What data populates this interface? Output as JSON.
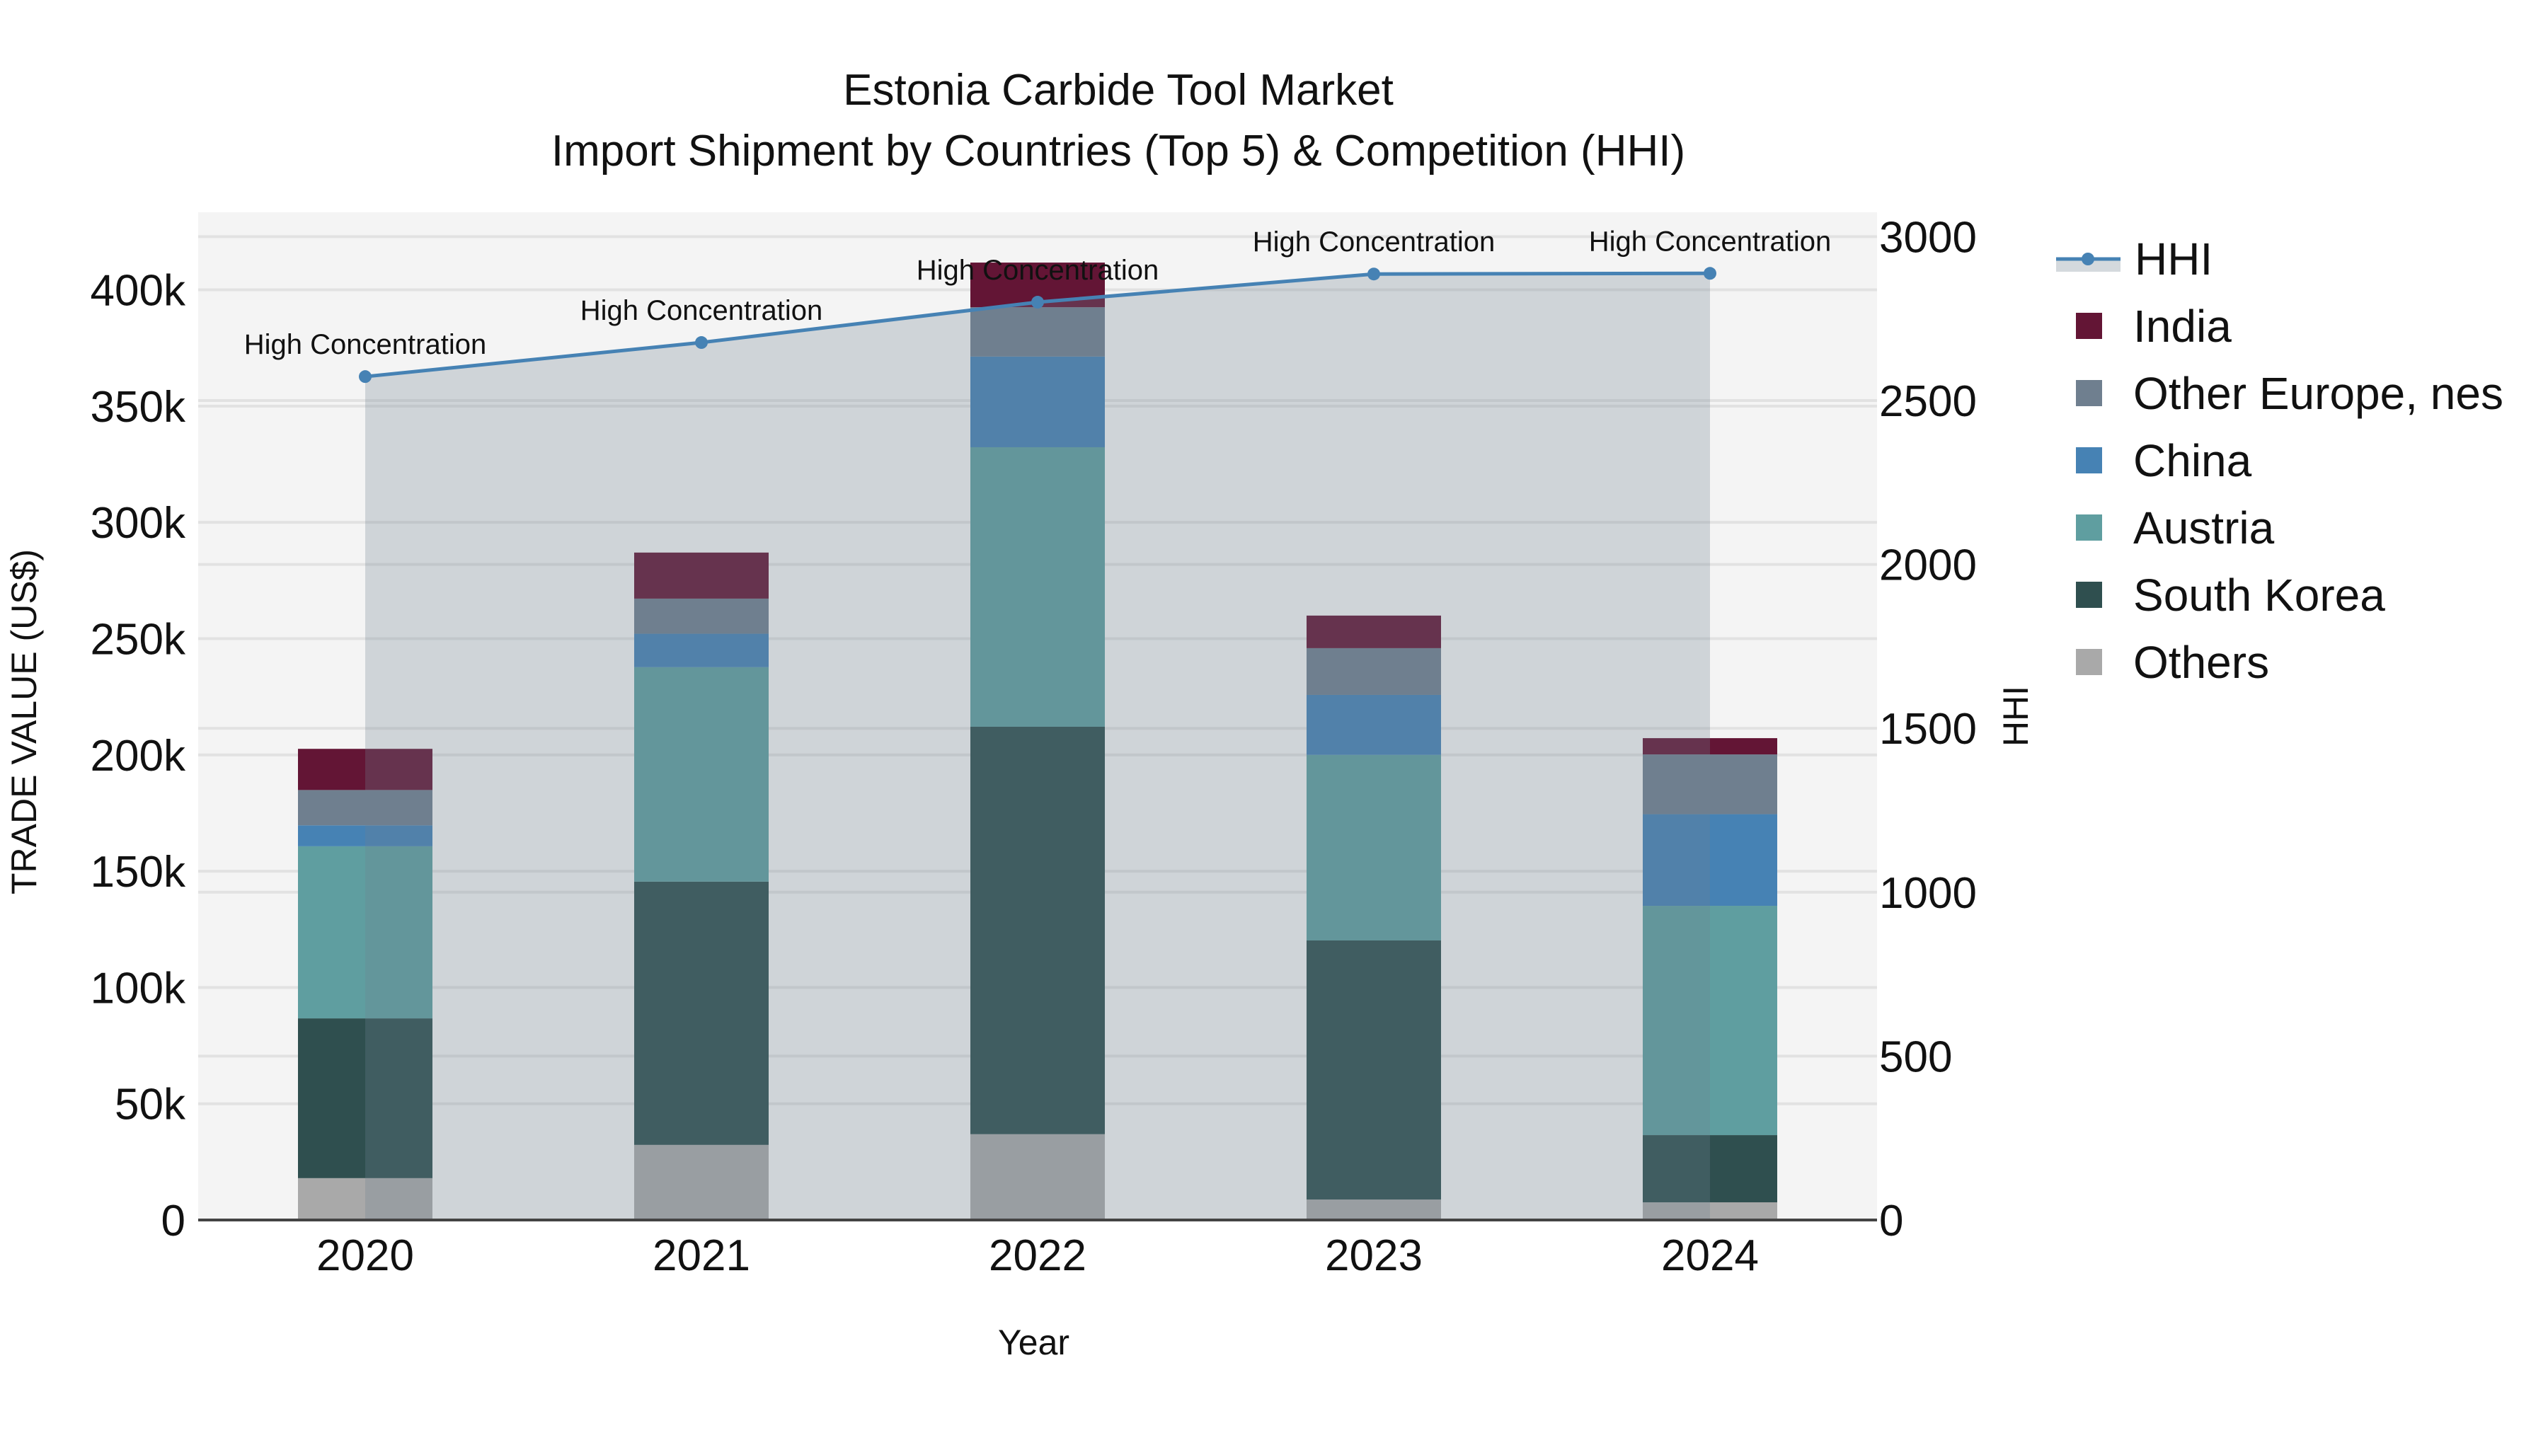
{
  "title": {
    "line1": "Estonia Carbide Tool Market",
    "line2": "Import Shipment by Countries (Top 5) & Competition (HHI)"
  },
  "axes": {
    "x_title": "Year",
    "y_left_title": "TRADE VALUE (US$)",
    "y_right_title": "HHI",
    "y_left_ticks": [
      "0",
      "50k",
      "100k",
      "150k",
      "200k",
      "250k",
      "300k",
      "350k",
      "400k"
    ],
    "y_right_ticks": [
      "0",
      "500",
      "1000",
      "1500",
      "2000",
      "2500",
      "3000"
    ]
  },
  "legend": [
    {
      "label": "HHI",
      "type": "line",
      "color": "#4682b4"
    },
    {
      "label": "India",
      "type": "bar",
      "color": "#631535"
    },
    {
      "label": "Other Europe, nes",
      "type": "bar",
      "color": "#6f7f8f"
    },
    {
      "label": "China",
      "type": "bar",
      "color": "#4682b4"
    },
    {
      "label": "Austria",
      "type": "bar",
      "color": "#5f9ea0"
    },
    {
      "label": "South Korea",
      "type": "bar",
      "color": "#2f4f4f"
    },
    {
      "label": "Others",
      "type": "bar",
      "color": "#a9a9a9"
    }
  ],
  "colors": {
    "plot_bg": "#f4f4f4",
    "grid": "#e2e2e2",
    "hhi_line": "#4682b4",
    "hhi_fill": "rgba(112,128,144,0.28)"
  },
  "chart_data": {
    "type": "bar",
    "title": "Estonia Carbide Tool Market — Import Shipment by Countries (Top 5) & Competition (HHI)",
    "xlabel": "Year",
    "ylabel": "TRADE VALUE (US$)",
    "y2label": "HHI",
    "stacked": true,
    "categories": [
      "2020",
      "2021",
      "2022",
      "2023",
      "2024"
    ],
    "ylim": [
      0,
      432000
    ],
    "y2lim": [
      0,
      3075
    ],
    "grid": true,
    "legend_position": "right",
    "series": [
      {
        "name": "Others",
        "color": "#a9a9a9",
        "values": [
          18000,
          32300,
          36900,
          8800,
          7600
        ]
      },
      {
        "name": "South Korea",
        "color": "#2f4f4f",
        "values": [
          68700,
          113200,
          175200,
          111400,
          28900
        ]
      },
      {
        "name": "Austria",
        "color": "#5f9ea0",
        "values": [
          74000,
          92200,
          120200,
          79800,
          98600
        ]
      },
      {
        "name": "China",
        "color": "#4682b4",
        "values": [
          9000,
          14400,
          39000,
          25800,
          39400
        ]
      },
      {
        "name": "Other Europe, nes",
        "color": "#6f7f8f",
        "values": [
          15200,
          15100,
          21200,
          20100,
          25700
        ]
      },
      {
        "name": "India",
        "color": "#631535",
        "values": [
          17700,
          19800,
          19200,
          14000,
          7000
        ]
      }
    ],
    "line_series": {
      "name": "HHI",
      "axis": "right",
      "type": "line+area",
      "color": "#4682b4",
      "values": [
        2573,
        2677,
        2800,
        2886,
        2888
      ],
      "annotations": [
        "High Concentration",
        "High Concentration",
        "High Concentration",
        "High Concentration",
        "High Concentration"
      ]
    }
  }
}
